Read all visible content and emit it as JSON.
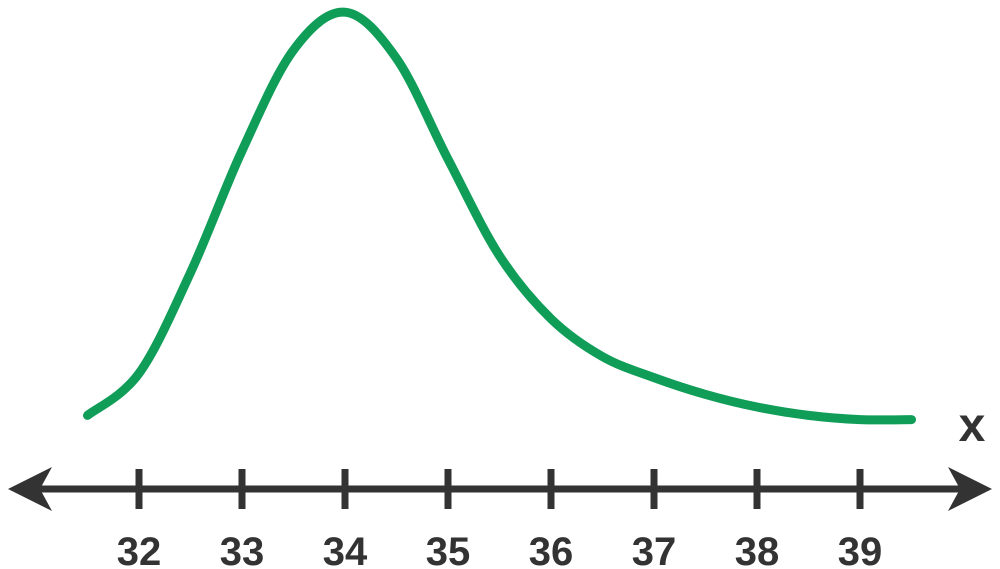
{
  "chart_data": {
    "type": "line",
    "title": "",
    "xlabel": "x",
    "ylabel": "",
    "xlim": [
      31.0,
      40.3
    ],
    "ylim": [
      0,
      1
    ],
    "grid": false,
    "legend": "none",
    "x_ticks": [
      "32",
      "33",
      "34",
      "35",
      "36",
      "37",
      "38",
      "39"
    ],
    "series": [
      {
        "color": "#0f9d58",
        "x": [
          31.5,
          32.0,
          32.5,
          33.0,
          33.5,
          34.0,
          34.5,
          35.0,
          35.5,
          36.0,
          36.5,
          37.0,
          37.5,
          38.0,
          38.5,
          39.0,
          39.5
        ],
        "y": [
          0.03,
          0.13,
          0.37,
          0.66,
          0.9,
          0.99,
          0.88,
          0.64,
          0.41,
          0.26,
          0.17,
          0.12,
          0.08,
          0.05,
          0.03,
          0.02,
          0.02
        ]
      }
    ]
  },
  "colors": {
    "curve": "#0f9d58",
    "axis": "#333333"
  }
}
